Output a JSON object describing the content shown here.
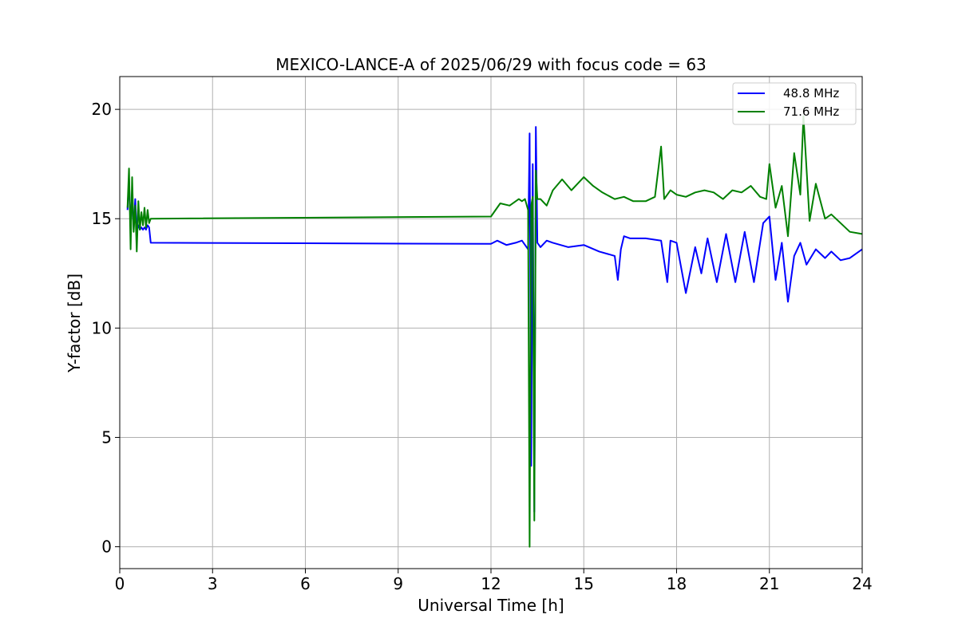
{
  "chart_data": {
    "type": "line",
    "title": "MEXICO-LANCE-A of 2025/06/29 with focus code = 63",
    "xlabel": "Universal Time [h]",
    "ylabel": "Y-factor [dB]",
    "xlim": [
      0,
      24
    ],
    "ylim": [
      -1,
      21.5
    ],
    "xticks": [
      0,
      3,
      6,
      9,
      12,
      15,
      18,
      21,
      24
    ],
    "yticks": [
      0,
      5,
      10,
      15,
      20
    ],
    "grid": true,
    "legend_position": "top-right",
    "series": [
      {
        "name": "48.8 MHz",
        "color": "#0000ff",
        "x": [
          0.25,
          0.3,
          0.35,
          0.4,
          0.45,
          0.5,
          0.55,
          0.6,
          0.65,
          0.7,
          0.75,
          0.8,
          0.85,
          0.9,
          0.95,
          1.0,
          12.0,
          12.2,
          12.5,
          12.8,
          13.0,
          13.2,
          13.25,
          13.3,
          13.35,
          13.4,
          13.45,
          13.5,
          13.55,
          13.6,
          13.8,
          14.0,
          14.5,
          15.0,
          15.5,
          16.0,
          16.1,
          16.2,
          16.3,
          16.5,
          17.0,
          17.5,
          17.7,
          17.8,
          18.0,
          18.3,
          18.6,
          18.8,
          19.0,
          19.3,
          19.6,
          19.9,
          20.2,
          20.5,
          20.8,
          21.0,
          21.2,
          21.4,
          21.6,
          21.8,
          22.0,
          22.2,
          22.5,
          22.8,
          23.0,
          23.3,
          23.6,
          24.0
        ],
        "y": [
          15.4,
          16.8,
          14.6,
          16.2,
          14.5,
          15.9,
          14.5,
          14.7,
          14.5,
          14.6,
          14.5,
          14.6,
          14.5,
          14.7,
          14.6,
          13.9,
          13.85,
          14.0,
          13.8,
          13.9,
          14.0,
          13.6,
          18.9,
          3.7,
          17.5,
          1.6,
          19.2,
          13.9,
          13.8,
          13.7,
          14.0,
          13.9,
          13.7,
          13.8,
          13.5,
          13.3,
          12.2,
          13.6,
          14.2,
          14.1,
          14.1,
          14.0,
          12.1,
          14.0,
          13.9,
          11.6,
          13.7,
          12.5,
          14.1,
          12.1,
          14.3,
          12.1,
          14.4,
          12.1,
          14.8,
          15.1,
          12.2,
          13.9,
          11.2,
          13.3,
          13.9,
          12.9,
          13.6,
          13.2,
          13.5,
          13.1,
          13.2,
          13.6
        ]
      },
      {
        "name": "71.6 MHz",
        "color": "#008000",
        "x": [
          0.25,
          0.3,
          0.35,
          0.4,
          0.45,
          0.5,
          0.55,
          0.6,
          0.65,
          0.7,
          0.75,
          0.8,
          0.85,
          0.9,
          0.95,
          1.0,
          12.0,
          12.3,
          12.6,
          12.9,
          13.0,
          13.1,
          13.2,
          13.25,
          13.3,
          13.35,
          13.4,
          13.45,
          13.5,
          13.6,
          13.8,
          14.0,
          14.3,
          14.6,
          15.0,
          15.3,
          15.6,
          16.0,
          16.3,
          16.6,
          17.0,
          17.3,
          17.5,
          17.6,
          17.8,
          18.0,
          18.3,
          18.6,
          18.9,
          19.2,
          19.5,
          19.8,
          20.1,
          20.4,
          20.7,
          20.9,
          21.0,
          21.2,
          21.4,
          21.6,
          21.8,
          22.0,
          22.1,
          22.3,
          22.5,
          22.8,
          23.0,
          23.3,
          23.6,
          24.0
        ],
        "y": [
          15.5,
          17.3,
          13.6,
          16.9,
          14.4,
          15.6,
          13.5,
          15.8,
          14.5,
          15.3,
          14.7,
          15.5,
          14.6,
          15.4,
          14.8,
          15.0,
          15.1,
          15.7,
          15.6,
          15.9,
          15.8,
          15.9,
          15.4,
          0.0,
          15.6,
          16.0,
          1.2,
          17.2,
          15.9,
          15.9,
          15.6,
          16.3,
          16.8,
          16.3,
          16.9,
          16.5,
          16.2,
          15.9,
          16.0,
          15.8,
          15.8,
          16.0,
          18.3,
          15.9,
          16.3,
          16.1,
          16.0,
          16.2,
          16.3,
          16.2,
          15.9,
          16.3,
          16.2,
          16.5,
          16.0,
          15.9,
          17.5,
          15.5,
          16.5,
          14.2,
          18.0,
          16.1,
          19.7,
          14.9,
          16.6,
          15.0,
          15.2,
          14.8,
          14.4,
          14.3
        ]
      }
    ]
  }
}
